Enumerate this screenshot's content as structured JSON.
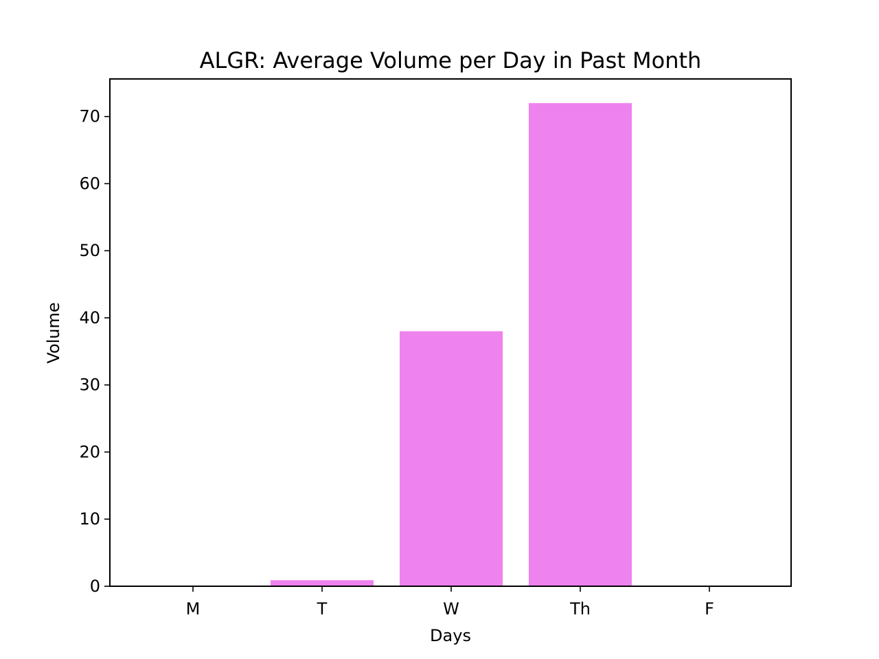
{
  "chart_data": {
    "type": "bar",
    "title": "ALGR: Average Volume per Day in Past Month",
    "xlabel": "Days",
    "ylabel": "Volume",
    "categories": [
      "M",
      "T",
      "W",
      "Th",
      "F"
    ],
    "values": [
      0,
      0.9,
      38,
      72,
      0
    ],
    "ylim": [
      0,
      75.6
    ],
    "yticks": [
      0,
      10,
      20,
      30,
      40,
      50,
      60,
      70
    ],
    "bar_color": "#ee82ee",
    "grid": false,
    "legend": "none"
  }
}
